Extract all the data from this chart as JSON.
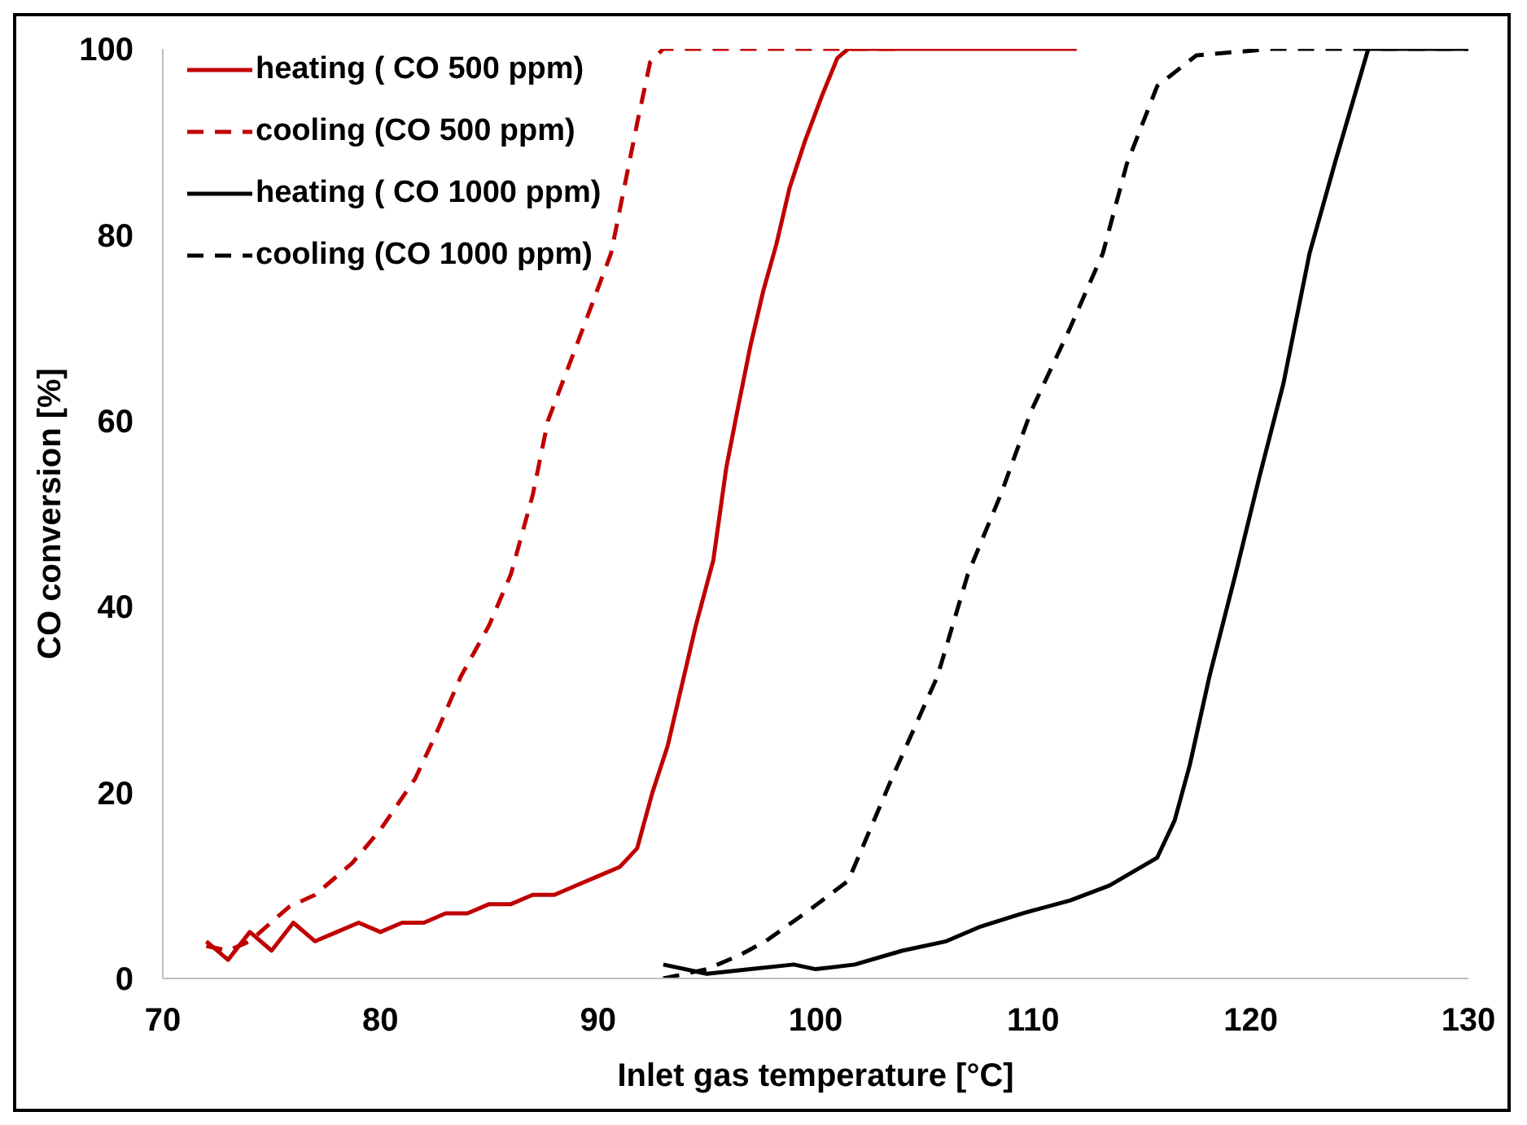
{
  "chart_data": {
    "type": "line",
    "xlabel": "Inlet gas temperature [°C]",
    "ylabel": "CO conversion [%]",
    "xlim": [
      70,
      130
    ],
    "xticks": [
      70,
      80,
      90,
      100,
      110,
      120,
      130
    ],
    "ylim": [
      0,
      100
    ],
    "yticks": [
      0,
      20,
      40,
      60,
      80,
      100
    ],
    "grid": false,
    "legend": "top left",
    "marker": "none",
    "series": [
      {
        "name": "heating ( CO 500 ppm)",
        "color": "#c00000",
        "line_style": "solid",
        "x": [
          72,
          73,
          74,
          75,
          76,
          77,
          78,
          79,
          80,
          81,
          82,
          83,
          84,
          85,
          86,
          87,
          88,
          89,
          90,
          91,
          91.8,
          92.5,
          93.2,
          93.8,
          94.5,
          95.3,
          95.9,
          96.4,
          97,
          97.6,
          98.2,
          98.8,
          99.5,
          100.3,
          101,
          101.5,
          104,
          108,
          112
        ],
        "values": [
          4,
          2,
          5,
          3,
          6,
          4,
          5,
          6,
          5,
          6,
          6,
          7,
          7,
          8,
          8,
          9,
          9,
          10,
          11,
          12,
          14,
          20,
          25,
          31,
          38,
          45,
          55,
          61,
          68,
          74,
          79,
          85,
          90,
          95,
          99,
          100,
          100,
          100,
          100
        ]
      },
      {
        "name": "cooling (CO 500 ppm)",
        "color": "#c00000",
        "line_style": "dashed",
        "x": [
          72,
          73,
          74,
          75.8,
          77,
          78.7,
          80,
          81.6,
          82.5,
          83.7,
          85,
          86,
          87,
          87.7,
          89,
          90.6,
          91.8,
          92.4,
          93,
          94.5,
          100,
          104
        ],
        "values": [
          3.5,
          3,
          4,
          7.7,
          9,
          12.4,
          16,
          21.5,
          26,
          32.5,
          38,
          43.5,
          52,
          60,
          68,
          78,
          92,
          98.6,
          100,
          100,
          100,
          100
        ]
      },
      {
        "name": "heating ( CO 1000 ppm)",
        "color": "#000000",
        "line_style": "solid",
        "x": [
          93,
          95,
          97,
          99,
          100,
          101.8,
          104,
          106,
          107.6,
          109.5,
          111.7,
          113.5,
          115.7,
          116.5,
          117.2,
          118.1,
          119.3,
          120.4,
          121.5,
          122.7,
          123.9,
          125.4,
          130
        ],
        "values": [
          1.5,
          0.5,
          1,
          1.5,
          1,
          1.5,
          3,
          4,
          5.6,
          7,
          8.4,
          10,
          13,
          17,
          23,
          32.5,
          43.5,
          54,
          64,
          78,
          88,
          100,
          100
        ]
      },
      {
        "name": "cooling (CO 1000 ppm)",
        "color": "#000000",
        "line_style": "dashed",
        "x": [
          93,
          95,
          96.5,
          97.7,
          99.5,
          101.5,
          103.5,
          105.6,
          107,
          108.5,
          109.9,
          111.7,
          113.2,
          114.3,
          115.7,
          117.5,
          121,
          130
        ],
        "values": [
          0,
          1,
          2.5,
          4,
          7,
          10.5,
          21.5,
          32.5,
          43.5,
          52,
          61,
          70,
          78,
          87.6,
          96,
          99.3,
          100,
          100
        ]
      }
    ]
  }
}
